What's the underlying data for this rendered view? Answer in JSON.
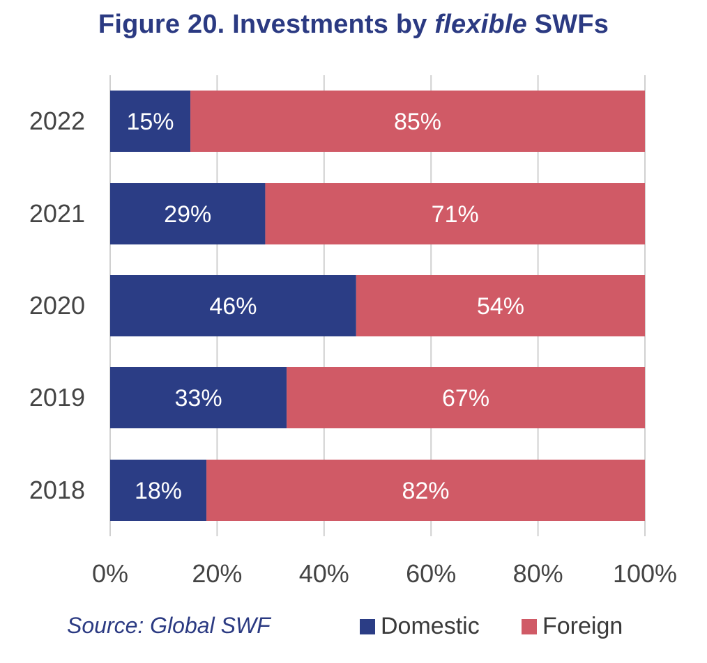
{
  "title": {
    "prefix": "Figure 20. Investments by ",
    "emphasis": "flexible",
    "suffix": " SWFs"
  },
  "source": "Source: Global SWF",
  "colors": {
    "domestic": "#2b3d85",
    "foreign": "#d05a66",
    "grid": "#d0d0d0",
    "axis_text": "#444444",
    "title": "#2b3a82"
  },
  "chart_data": {
    "type": "bar",
    "orientation": "horizontal",
    "stacked": true,
    "categories": [
      "2022",
      "2021",
      "2020",
      "2019",
      "2018"
    ],
    "series": [
      {
        "name": "Domestic",
        "values": [
          15,
          29,
          46,
          33,
          18
        ],
        "labels": [
          "15%",
          "29%",
          "46%",
          "33%",
          "18%"
        ]
      },
      {
        "name": "Foreign",
        "values": [
          85,
          71,
          54,
          67,
          82
        ],
        "labels": [
          "85%",
          "71%",
          "54%",
          "67%",
          "82%"
        ]
      }
    ],
    "xlim": [
      0,
      100
    ],
    "xticks": [
      "0%",
      "20%",
      "40%",
      "60%",
      "80%",
      "100%"
    ],
    "grid": true,
    "legend": "bottom-right"
  }
}
